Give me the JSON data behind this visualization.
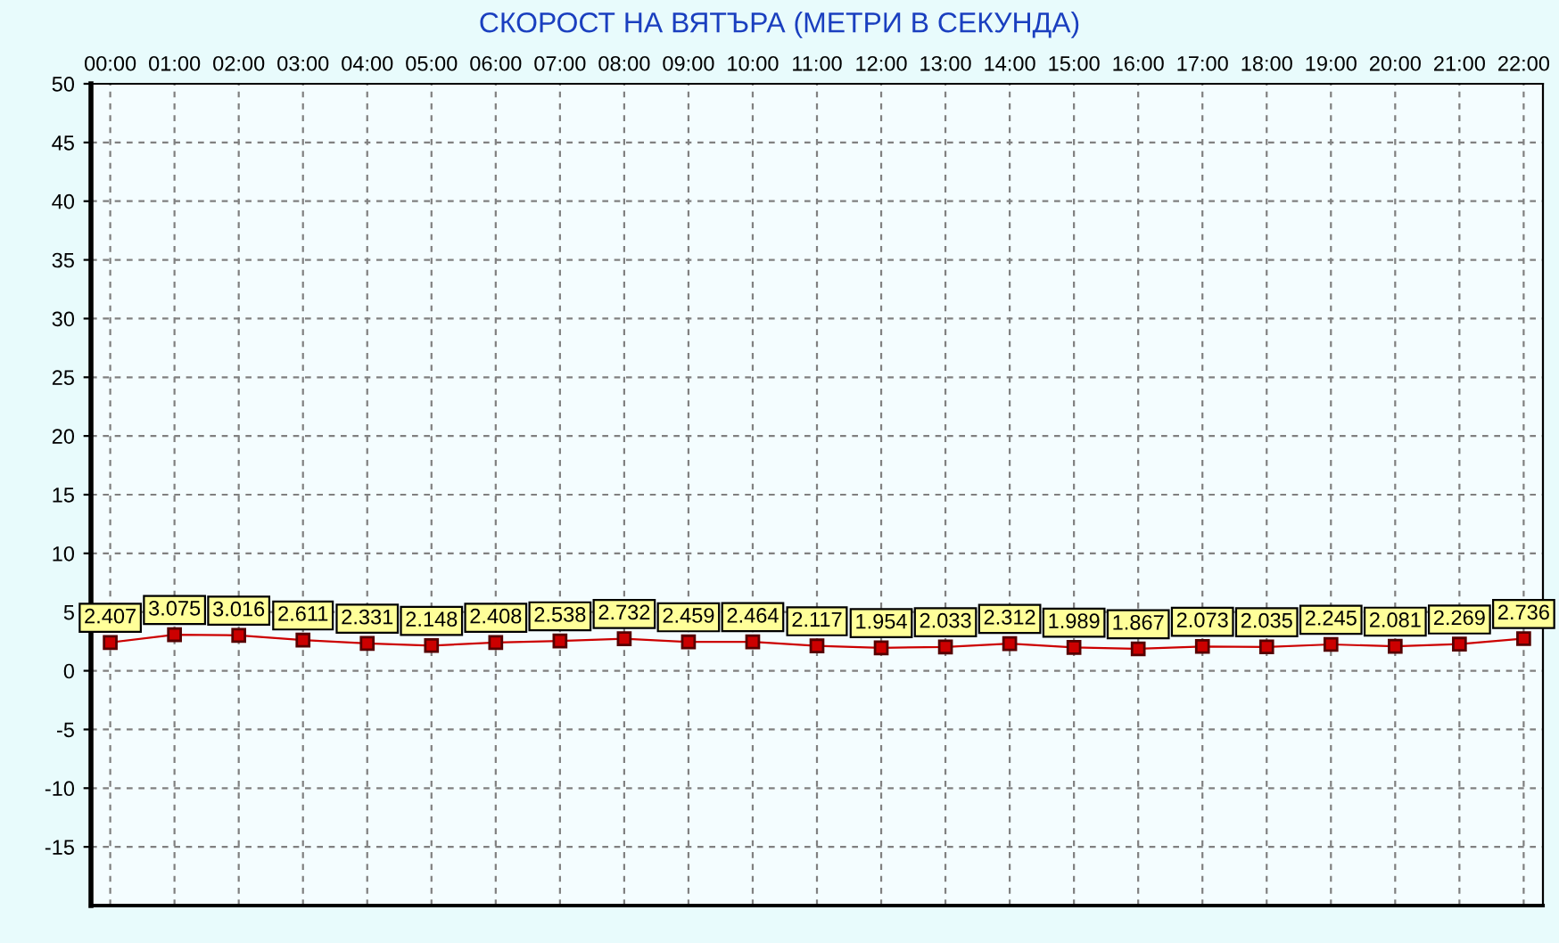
{
  "chart_data": {
    "type": "line",
    "title": "СКОРОСТ НА ВЯТЪРА (МЕТРИ В СЕКУНДА)",
    "categories": [
      "00:00",
      "01:00",
      "02:00",
      "03:00",
      "04:00",
      "05:00",
      "06:00",
      "07:00",
      "08:00",
      "09:00",
      "10:00",
      "11:00",
      "12:00",
      "13:00",
      "14:00",
      "15:00",
      "16:00",
      "17:00",
      "18:00",
      "19:00",
      "20:00",
      "21:00",
      "22:00"
    ],
    "series": [
      {
        "color": "#cc0000",
        "values": [
          2.407,
          3.075,
          3.016,
          2.611,
          2.331,
          2.148,
          2.408,
          2.538,
          2.732,
          2.459,
          2.464,
          2.117,
          1.954,
          2.033,
          2.312,
          1.989,
          1.867,
          2.073,
          2.035,
          2.245,
          2.081,
          2.269,
          2.736
        ]
      }
    ],
    "ylim": [
      -20,
      50
    ],
    "yticks": [
      -15,
      -10,
      -5,
      0,
      5,
      10,
      15,
      20,
      25,
      30,
      35,
      40,
      45,
      50
    ],
    "grid": true,
    "marker": "square",
    "data_labels": true
  }
}
